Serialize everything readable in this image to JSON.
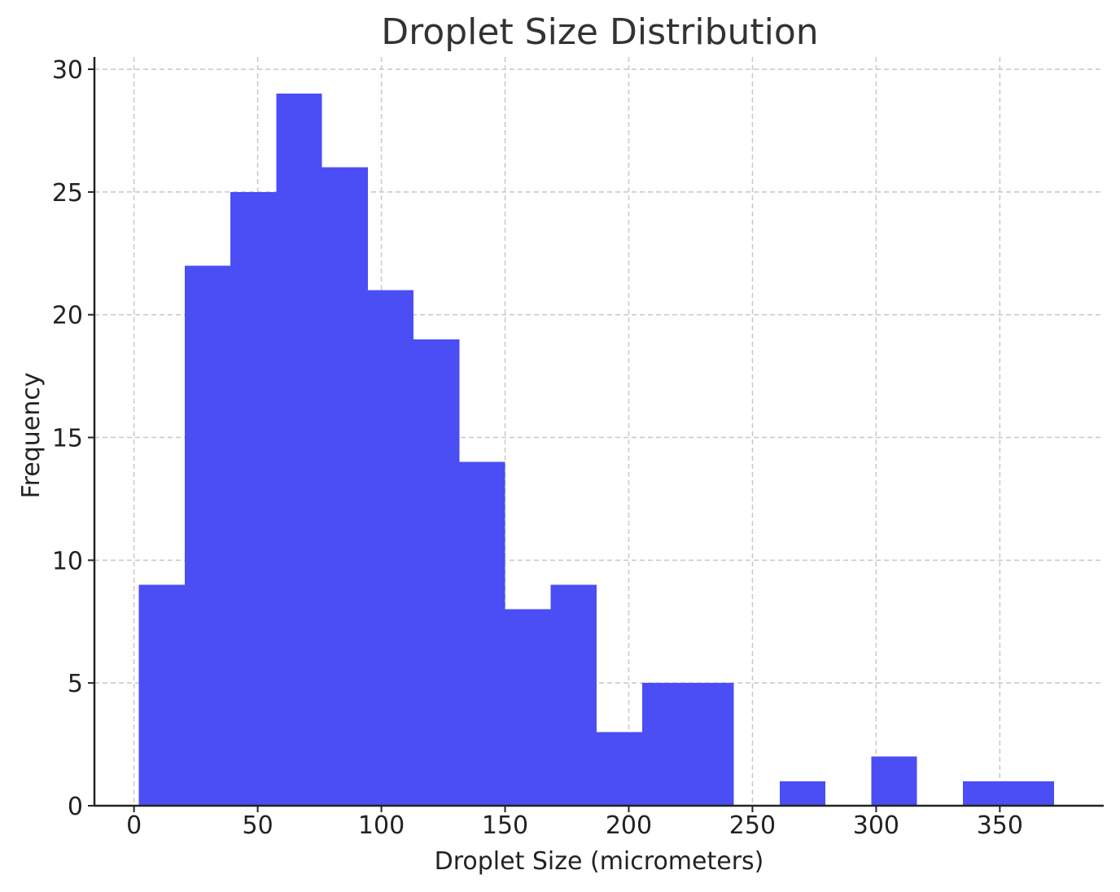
{
  "chart_data": {
    "type": "bar",
    "title": "Droplet Size Distribution",
    "xlabel": "Droplet Size (micrometers)",
    "ylabel": "Frequency",
    "bin_edges": [
      2,
      20.5,
      39,
      57.5,
      76,
      94.5,
      113,
      131.5,
      150,
      168.5,
      187,
      205.5,
      224,
      242.5,
      261,
      279.5,
      298,
      316.5,
      335,
      353.5,
      372
    ],
    "values": [
      9,
      22,
      25,
      29,
      26,
      21,
      19,
      14,
      8,
      9,
      3,
      5,
      5,
      0,
      1,
      0,
      2,
      0,
      1,
      1
    ],
    "xlim": [
      -16,
      392
    ],
    "ylim": [
      0,
      30.5
    ],
    "xticks": [
      0,
      50,
      100,
      150,
      200,
      250,
      300,
      350
    ],
    "yticks": [
      0,
      5,
      10,
      15,
      20,
      25,
      30
    ],
    "grid": true,
    "bar_color": "#4b4ef4"
  }
}
